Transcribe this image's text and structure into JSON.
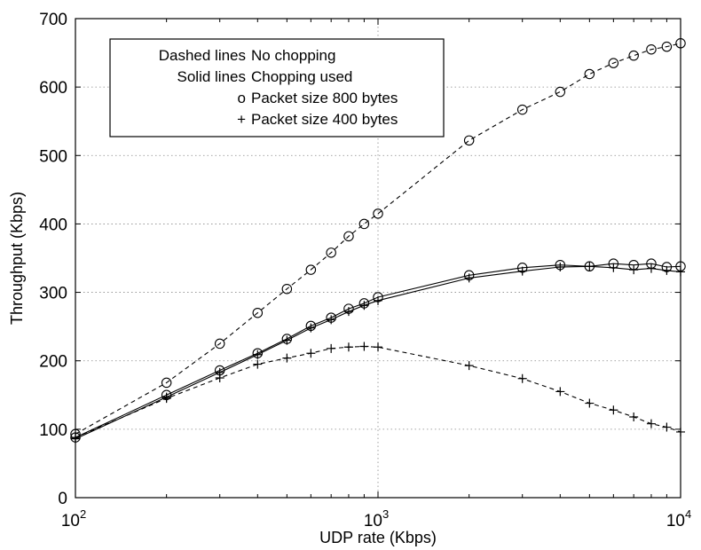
{
  "chart_data": {
    "type": "line",
    "xlabel": "UDP rate (Kbps)",
    "ylabel": "Throughput (Kbps)",
    "x_scale": "log",
    "xlim": [
      100,
      10000
    ],
    "ylim": [
      0,
      700
    ],
    "x_ticks": [
      {
        "value": 100,
        "base": "10",
        "exp": "2"
      },
      {
        "value": 1000,
        "base": "10",
        "exp": "3"
      },
      {
        "value": 10000,
        "base": "10",
        "exp": "4"
      }
    ],
    "y_ticks": [
      0,
      100,
      200,
      300,
      400,
      500,
      600,
      700
    ],
    "grid": true,
    "legend_placement": "top-left",
    "legend": [
      {
        "key": "Dashed lines",
        "desc": "No chopping"
      },
      {
        "key": "Solid lines",
        "desc": "Chopping used"
      },
      {
        "key": "o",
        "desc": "Packet size 800 bytes"
      },
      {
        "key": "+",
        "desc": "Packet size 400 bytes"
      }
    ],
    "series": [
      {
        "line_style": "dashed",
        "marker": "o",
        "x": [
          100,
          200,
          300,
          400,
          500,
          600,
          700,
          800,
          900,
          1000,
          2000,
          3000,
          4000,
          5000,
          6000,
          7000,
          8000,
          9000,
          10000
        ],
        "y": [
          93,
          168,
          225,
          270,
          305,
          333,
          358,
          382,
          400,
          415,
          522,
          567,
          593,
          619,
          635,
          646,
          655,
          659,
          664
        ]
      },
      {
        "line_style": "dashed",
        "marker": "+",
        "x": [
          100,
          200,
          300,
          400,
          500,
          600,
          700,
          800,
          900,
          1000,
          2000,
          3000,
          4000,
          5000,
          6000,
          7000,
          8000,
          9000,
          10000
        ],
        "y": [
          88,
          145,
          175,
          195,
          204,
          211,
          218,
          220,
          221,
          220,
          193,
          174,
          155,
          138,
          128,
          118,
          108,
          103,
          96
        ]
      },
      {
        "line_style": "solid",
        "marker": "o",
        "x": [
          100,
          200,
          300,
          400,
          500,
          600,
          700,
          800,
          900,
          1000,
          2000,
          3000,
          4000,
          5000,
          6000,
          7000,
          8000,
          9000,
          10000
        ],
        "y": [
          88,
          150,
          186,
          211,
          232,
          251,
          263,
          276,
          284,
          293,
          325,
          336,
          340,
          338,
          342,
          340,
          342,
          337,
          338
        ]
      },
      {
        "line_style": "solid",
        "marker": "+",
        "x": [
          100,
          200,
          300,
          400,
          500,
          600,
          700,
          800,
          900,
          1000,
          2000,
          3000,
          4000,
          5000,
          6000,
          7000,
          8000,
          9000,
          10000
        ],
        "y": [
          86,
          147,
          183,
          209,
          230,
          248,
          260,
          272,
          281,
          288,
          321,
          331,
          337,
          338,
          336,
          333,
          335,
          332,
          330
        ]
      }
    ]
  }
}
